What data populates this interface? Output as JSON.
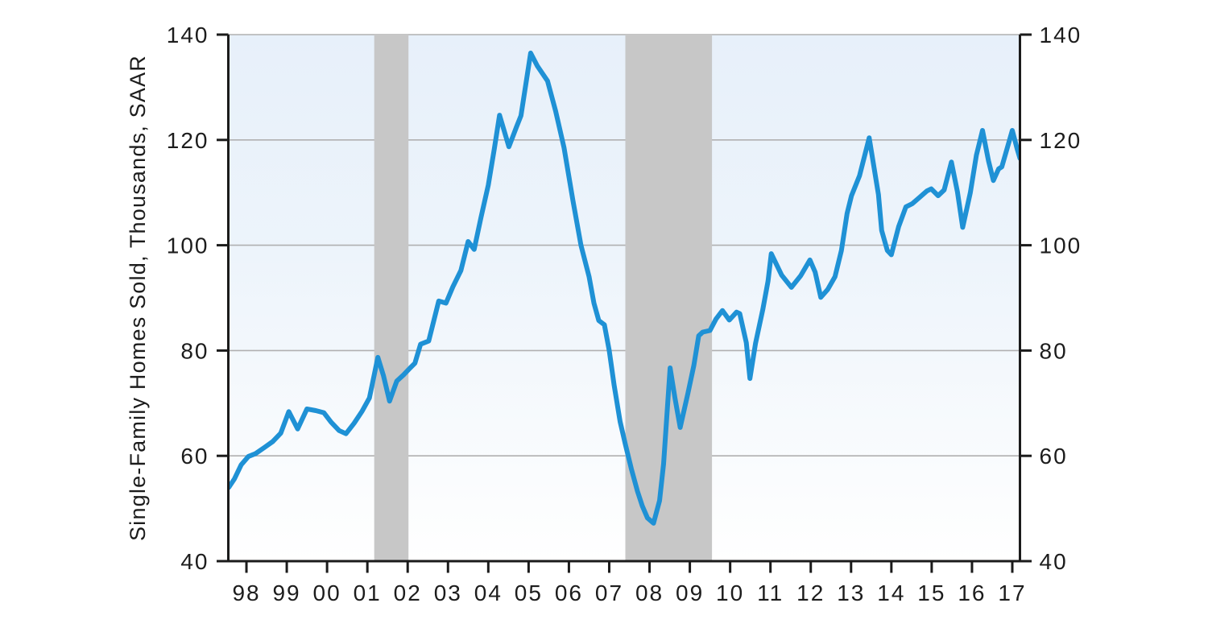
{
  "figure": {
    "background": "#ffffff"
  },
  "chart_data": {
    "type": "line",
    "title": "",
    "xlabel": "",
    "ylabel": "Single-Family Homes Sold, Thousands, SAAR",
    "xlim": [
      1997.55,
      2017.19
    ],
    "ylim": [
      40,
      140
    ],
    "yticks": [
      40,
      60,
      80,
      100,
      120,
      140
    ],
    "ytick_labels": [
      "40",
      "60",
      "80",
      "100",
      "120",
      "140"
    ],
    "ytick_labels_right": [
      "40",
      "60",
      "80",
      "100",
      "120",
      "140"
    ],
    "xticks": [
      1998,
      1999,
      2000,
      2001,
      2002,
      2003,
      2004,
      2005,
      2006,
      2007,
      2008,
      2009,
      2010,
      2011,
      2012,
      2013,
      2014,
      2015,
      2016,
      2017
    ],
    "xtick_labels": [
      "98",
      "99",
      "00",
      "01",
      "02",
      "03",
      "04",
      "05",
      "06",
      "07",
      "08",
      "09",
      "10",
      "11",
      "12",
      "13",
      "14",
      "15",
      "16",
      "17"
    ],
    "grid": {
      "horizontal": true,
      "vertical": false,
      "color": "#b0b0b0",
      "width": 1.6
    },
    "axes": {
      "left": true,
      "right": true,
      "bottom": true,
      "top": false,
      "color": "#1b1b1b",
      "stroke_width": 3,
      "tick_direction": "out",
      "tick_length": 13,
      "tick_width": 3
    },
    "panel_gradient": {
      "stops": [
        "#e7f0fa",
        "#edf4fb",
        "#f7fafd",
        "#ffffff"
      ],
      "offsets": [
        0,
        0.42,
        0.74,
        1
      ]
    },
    "recession_bands": {
      "color": "#c7c7c7",
      "ranges": [
        [
          2001.17,
          2002.02
        ],
        [
          2007.4,
          2009.55
        ]
      ]
    },
    "legend": {
      "visible": false
    },
    "series": [
      {
        "name": "single-family-homes-sold",
        "color": "#1f91d5",
        "stroke_width": 6,
        "points": [
          [
            1997.56,
            54.0
          ],
          [
            1997.7,
            55.6
          ],
          [
            1997.87,
            58.3
          ],
          [
            1998.05,
            59.9
          ],
          [
            1998.22,
            60.4
          ],
          [
            1998.45,
            61.6
          ],
          [
            1998.65,
            62.7
          ],
          [
            1998.85,
            64.3
          ],
          [
            1999.05,
            68.4
          ],
          [
            1999.27,
            65.1
          ],
          [
            1999.5,
            68.9
          ],
          [
            1999.72,
            68.6
          ],
          [
            1999.92,
            68.2
          ],
          [
            2000.1,
            66.4
          ],
          [
            2000.3,
            64.8
          ],
          [
            2000.47,
            64.2
          ],
          [
            2000.67,
            66.2
          ],
          [
            2000.87,
            68.5
          ],
          [
            2001.05,
            71.0
          ],
          [
            2001.26,
            78.7
          ],
          [
            2001.4,
            75.2
          ],
          [
            2001.55,
            70.4
          ],
          [
            2001.73,
            74.2
          ],
          [
            2001.9,
            75.4
          ],
          [
            2002.05,
            76.6
          ],
          [
            2002.18,
            77.6
          ],
          [
            2002.32,
            81.2
          ],
          [
            2002.52,
            81.8
          ],
          [
            2002.77,
            89.4
          ],
          [
            2002.95,
            89.0
          ],
          [
            2003.12,
            92.1
          ],
          [
            2003.32,
            95.2
          ],
          [
            2003.5,
            100.7
          ],
          [
            2003.65,
            99.2
          ],
          [
            2003.82,
            105.3
          ],
          [
            2004.0,
            111.4
          ],
          [
            2004.15,
            118.3
          ],
          [
            2004.28,
            124.7
          ],
          [
            2004.4,
            121.6
          ],
          [
            2004.51,
            118.7
          ],
          [
            2004.7,
            122.5
          ],
          [
            2004.81,
            124.6
          ],
          [
            2005.05,
            136.5
          ],
          [
            2005.22,
            134.0
          ],
          [
            2005.47,
            131.2
          ],
          [
            2005.67,
            125.5
          ],
          [
            2005.88,
            118.5
          ],
          [
            2006.1,
            108.5
          ],
          [
            2006.3,
            100.0
          ],
          [
            2006.5,
            94.0
          ],
          [
            2006.62,
            89.0
          ],
          [
            2006.74,
            85.7
          ],
          [
            2006.88,
            84.9
          ],
          [
            2007.0,
            80.0
          ],
          [
            2007.12,
            73.5
          ],
          [
            2007.27,
            66.5
          ],
          [
            2007.4,
            62.2
          ],
          [
            2007.55,
            57.5
          ],
          [
            2007.7,
            53.3
          ],
          [
            2007.82,
            50.5
          ],
          [
            2007.95,
            48.2
          ],
          [
            2008.1,
            47.2
          ],
          [
            2008.25,
            51.5
          ],
          [
            2008.35,
            58.5
          ],
          [
            2008.51,
            76.7
          ],
          [
            2008.63,
            71.0
          ],
          [
            2008.76,
            65.4
          ],
          [
            2008.95,
            71.8
          ],
          [
            2009.1,
            77.2
          ],
          [
            2009.22,
            82.8
          ],
          [
            2009.32,
            83.5
          ],
          [
            2009.5,
            83.8
          ],
          [
            2009.65,
            86.0
          ],
          [
            2009.81,
            87.6
          ],
          [
            2009.98,
            85.8
          ],
          [
            2010.16,
            87.3
          ],
          [
            2010.24,
            87.0
          ],
          [
            2010.4,
            81.5
          ],
          [
            2010.49,
            74.7
          ],
          [
            2010.63,
            81.4
          ],
          [
            2010.81,
            87.8
          ],
          [
            2010.94,
            93.2
          ],
          [
            2011.02,
            98.4
          ],
          [
            2011.28,
            94.3
          ],
          [
            2011.52,
            92.0
          ],
          [
            2011.75,
            94.2
          ],
          [
            2011.98,
            97.2
          ],
          [
            2012.11,
            94.9
          ],
          [
            2012.25,
            90.1
          ],
          [
            2012.42,
            91.6
          ],
          [
            2012.6,
            94.0
          ],
          [
            2012.76,
            99.0
          ],
          [
            2012.9,
            106.0
          ],
          [
            2013.01,
            109.4
          ],
          [
            2013.21,
            113.2
          ],
          [
            2013.45,
            120.4
          ],
          [
            2013.68,
            109.6
          ],
          [
            2013.76,
            102.8
          ],
          [
            2013.9,
            99.0
          ],
          [
            2014.0,
            98.2
          ],
          [
            2014.18,
            103.5
          ],
          [
            2014.36,
            107.3
          ],
          [
            2014.52,
            107.9
          ],
          [
            2014.7,
            109.1
          ],
          [
            2014.88,
            110.3
          ],
          [
            2014.99,
            110.7
          ],
          [
            2015.16,
            109.4
          ],
          [
            2015.31,
            110.5
          ],
          [
            2015.49,
            115.8
          ],
          [
            2015.64,
            110.1
          ],
          [
            2015.77,
            103.4
          ],
          [
            2015.96,
            110.0
          ],
          [
            2016.11,
            117.1
          ],
          [
            2016.26,
            121.8
          ],
          [
            2016.41,
            116.0
          ],
          [
            2016.53,
            112.3
          ],
          [
            2016.66,
            114.5
          ],
          [
            2016.74,
            114.9
          ],
          [
            2017.0,
            121.8
          ],
          [
            2017.12,
            118.3
          ],
          [
            2017.19,
            116.5
          ]
        ]
      }
    ],
    "text_style": {
      "tick_font_size": 28,
      "ylabel_font_size": 27,
      "letter_spacing": 2,
      "color": "#1c1c1c"
    }
  }
}
